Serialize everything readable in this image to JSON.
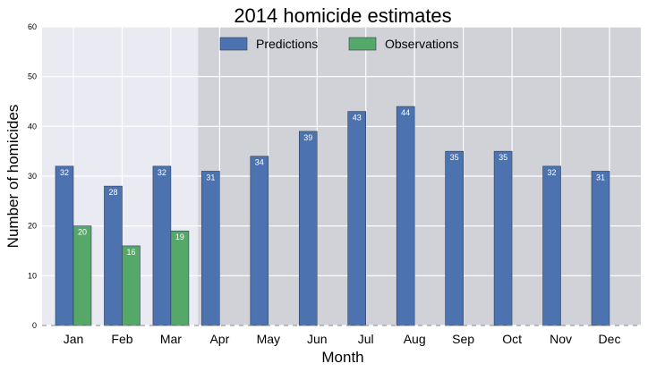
{
  "chart_data": {
    "type": "bar",
    "title": "2014 homicide estimates",
    "xlabel": "Month",
    "ylabel": "Number of homicides",
    "ylim": [
      0,
      60
    ],
    "yticks": [
      0,
      10,
      20,
      30,
      40,
      50,
      60
    ],
    "grid": true,
    "legend_position": "top",
    "categories": [
      "Jan",
      "Feb",
      "Mar",
      "Apr",
      "May",
      "Jun",
      "Jul",
      "Aug",
      "Sep",
      "Oct",
      "Nov",
      "Dec"
    ],
    "series": [
      {
        "name": "Predictions",
        "color": "#4c72b0",
        "values": [
          32,
          28,
          32,
          31,
          34,
          39,
          43,
          44,
          35,
          35,
          32,
          31
        ]
      },
      {
        "name": "Observations",
        "color": "#55a868",
        "values": [
          20,
          16,
          19,
          null,
          null,
          null,
          null,
          null,
          null,
          null,
          null,
          null
        ]
      }
    ],
    "shaded_region_start_category": "Apr",
    "shaded_region_color": "#d0d2d8",
    "background_color": "#eaeaf2"
  }
}
